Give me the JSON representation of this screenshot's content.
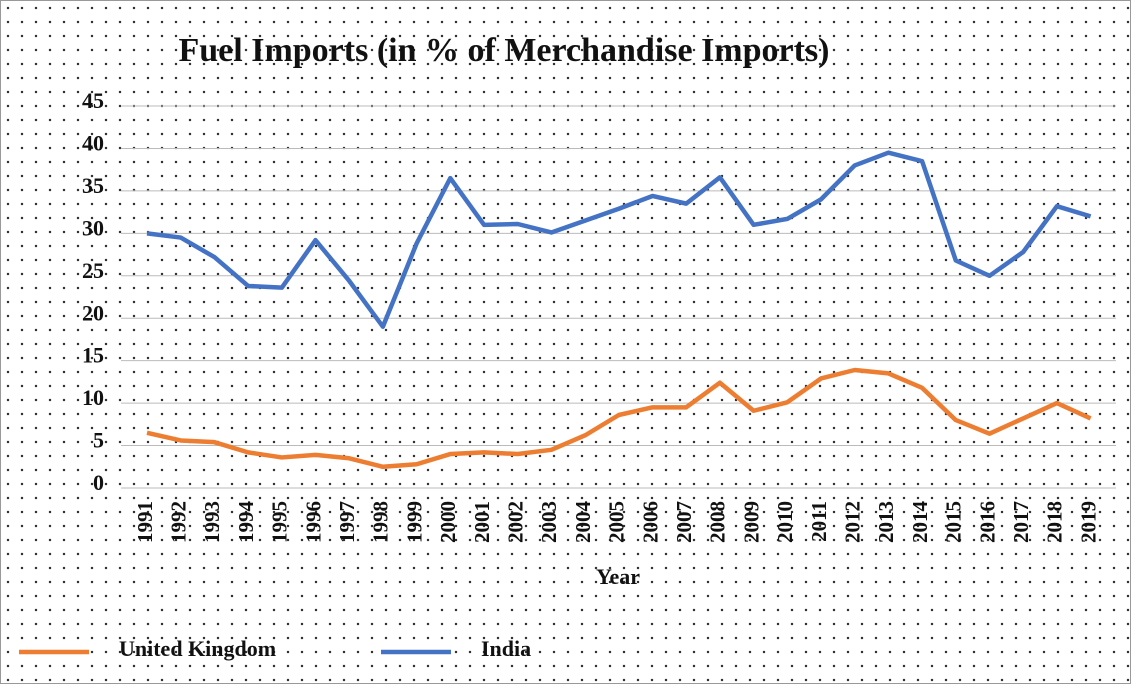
{
  "chart_data": {
    "type": "line",
    "title": "Fuel Imports (in % of Merchandise Imports)",
    "x_label": "Year",
    "categories": [
      "1991",
      "1992",
      "1993",
      "1994",
      "1995",
      "1996",
      "1997",
      "1998",
      "1999",
      "2000",
      "2001",
      "2002",
      "2003",
      "2004",
      "2005",
      "2006",
      "2007",
      "2008",
      "2009",
      "2010",
      "2011",
      "2012",
      "2013",
      "2014",
      "2015",
      "2016",
      "2017",
      "2018",
      "2019"
    ],
    "series": [
      {
        "name": "United Kingdom",
        "color": "#ed7d31",
        "values": [
          6.5,
          5.6,
          5.4,
          4.2,
          3.6,
          3.9,
          3.5,
          2.5,
          2.8,
          4.0,
          4.2,
          4.0,
          4.5,
          6.2,
          8.6,
          9.5,
          9.5,
          12.4,
          9.1,
          10.1,
          12.9,
          13.9,
          13.5,
          11.8,
          8.0,
          6.4,
          8.2,
          10.0,
          8.2
        ]
      },
      {
        "name": "India",
        "color": "#4472c4",
        "values": [
          30.0,
          29.5,
          27.2,
          23.8,
          23.6,
          29.2,
          24.4,
          19.0,
          28.8,
          36.5,
          31.0,
          31.1,
          30.1,
          31.5,
          32.9,
          34.4,
          33.5,
          36.6,
          31.0,
          31.7,
          34.0,
          38.0,
          39.5,
          38.5,
          26.8,
          25.0,
          27.8,
          33.2,
          32.0
        ]
      }
    ],
    "ylim": [
      0,
      45
    ],
    "yticks": [
      0,
      5,
      10,
      15,
      20,
      25,
      30,
      35,
      40,
      45
    ],
    "grid": true,
    "legend": "bottom"
  }
}
